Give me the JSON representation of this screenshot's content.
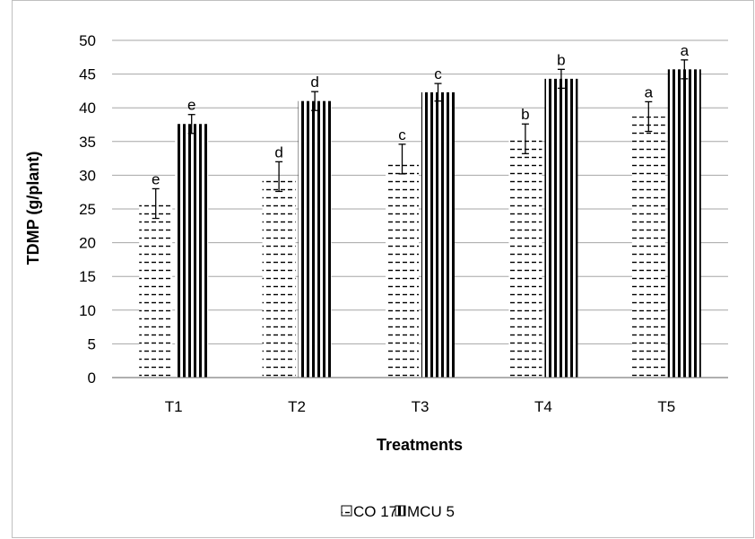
{
  "chart_data": {
    "type": "bar",
    "title": "",
    "xlabel": "Treatments",
    "ylabel": "TDMP (g/plant)",
    "categories": [
      "T1",
      "T2",
      "T3",
      "T4",
      "T5"
    ],
    "ylim": [
      0,
      50
    ],
    "yticks": [
      0,
      5,
      10,
      15,
      20,
      25,
      30,
      35,
      40,
      45,
      50
    ],
    "grid": true,
    "legend_position": "bottom",
    "series": [
      {
        "name": "CO 17",
        "pattern": "horizontal-dashes",
        "values": [
          25.8,
          29.8,
          32.4,
          35.4,
          38.7
        ],
        "error": [
          2.2,
          2.2,
          2.2,
          2.2,
          2.2
        ],
        "letters": [
          "e",
          "d",
          "c",
          "b",
          "a"
        ]
      },
      {
        "name": "MCU 5",
        "pattern": "vertical-stripes",
        "values": [
          37.6,
          41.0,
          42.3,
          44.3,
          45.7
        ],
        "error": [
          1.4,
          1.4,
          1.3,
          1.4,
          1.4
        ],
        "letters": [
          "e",
          "d",
          "c",
          "b",
          "a"
        ]
      }
    ],
    "colors": {
      "grid": "#a6a6a6",
      "bar_edge": "#000000",
      "fill": "#ffffff"
    }
  }
}
